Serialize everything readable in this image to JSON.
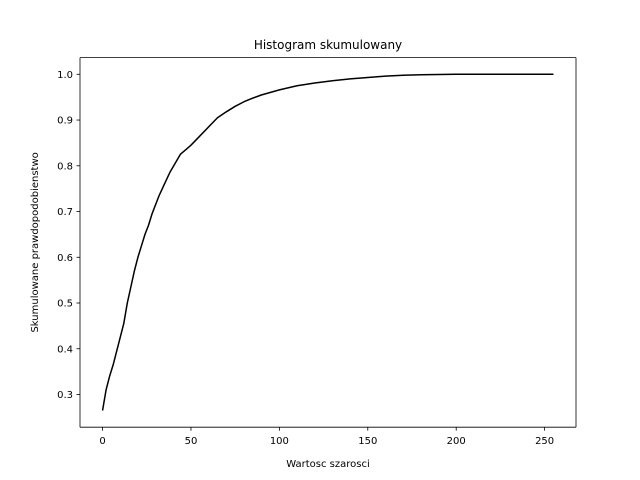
{
  "chart_data": {
    "type": "line",
    "title": "Histogram skumulowany",
    "xlabel": "Wartosc szarosci",
    "ylabel": "Skumulowane prawdopodobienstwo",
    "xlim": [
      -12.75,
      267.75
    ],
    "ylim": [
      0.2285,
      1.0365
    ],
    "xticks": [
      0,
      50,
      100,
      150,
      200,
      250
    ],
    "yticks": [
      0.3,
      0.4,
      0.5,
      0.6,
      0.7,
      0.8,
      0.9,
      1.0
    ],
    "xtick_labels": [
      "0",
      "50",
      "100",
      "150",
      "200",
      "250"
    ],
    "ytick_labels": [
      "0.3",
      "0.4",
      "0.5",
      "0.6",
      "0.7",
      "0.8",
      "0.9",
      "1.0"
    ],
    "grid": false,
    "series": [
      {
        "color": "#000000",
        "x": [
          0,
          2,
          4,
          6,
          8,
          10,
          12,
          14,
          16,
          18,
          20,
          22,
          24,
          26,
          28,
          30,
          32,
          35,
          38,
          41,
          44,
          47,
          50,
          55,
          60,
          65,
          70,
          75,
          80,
          85,
          90,
          100,
          110,
          120,
          130,
          140,
          150,
          160,
          170,
          180,
          190,
          200,
          210,
          220,
          230,
          240,
          255
        ],
        "y": [
          0.265,
          0.31,
          0.34,
          0.365,
          0.395,
          0.425,
          0.455,
          0.5,
          0.535,
          0.57,
          0.6,
          0.625,
          0.65,
          0.67,
          0.695,
          0.715,
          0.735,
          0.76,
          0.785,
          0.805,
          0.825,
          0.835,
          0.845,
          0.865,
          0.885,
          0.905,
          0.918,
          0.93,
          0.94,
          0.948,
          0.955,
          0.966,
          0.975,
          0.981,
          0.986,
          0.99,
          0.993,
          0.996,
          0.998,
          0.999,
          0.9995,
          1.0,
          1.0,
          1.0,
          1.0,
          1.0,
          1.0
        ]
      }
    ]
  }
}
